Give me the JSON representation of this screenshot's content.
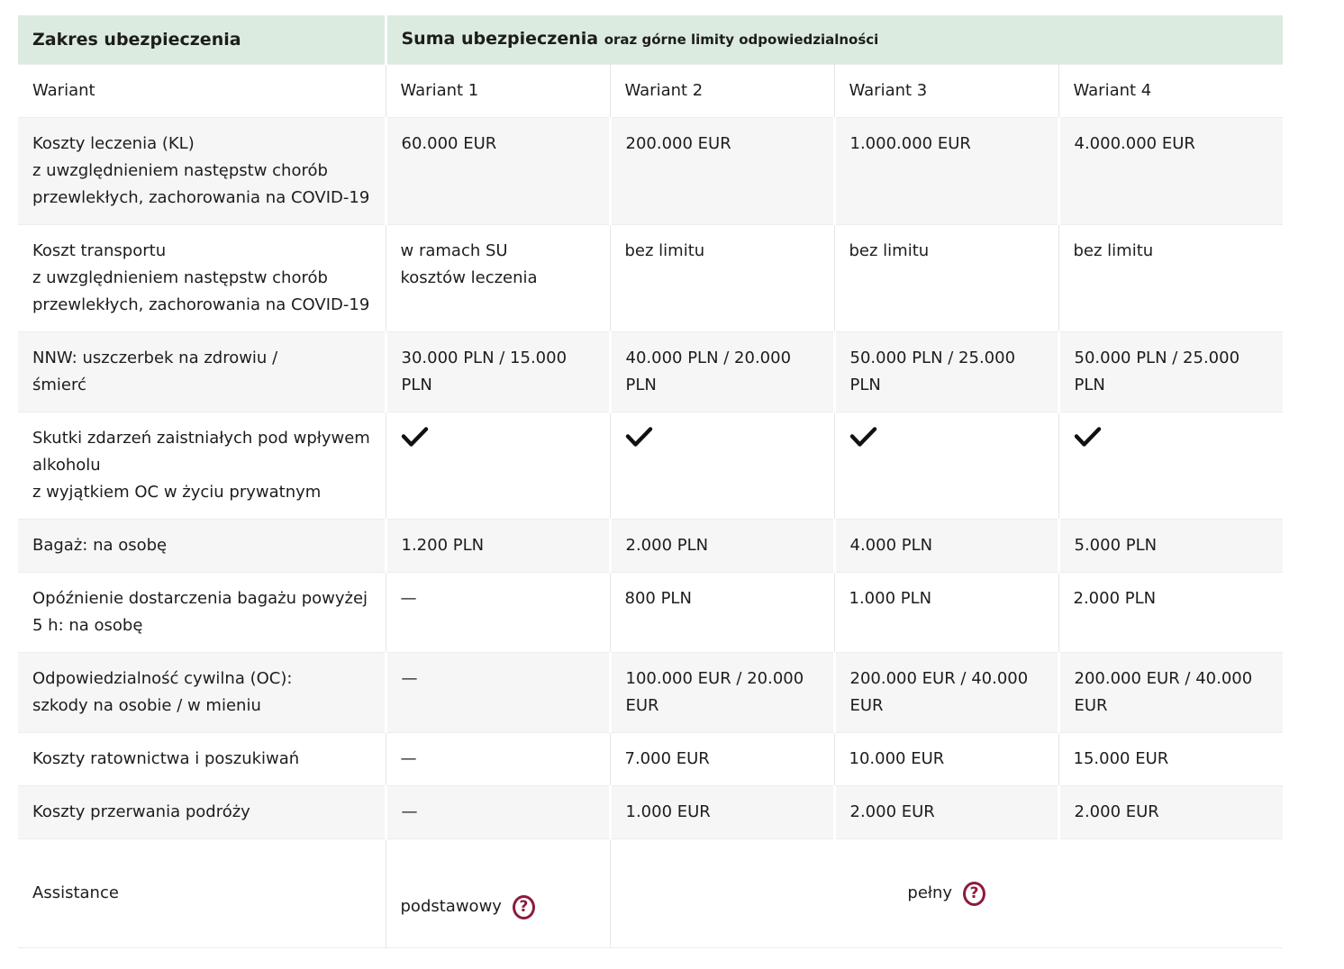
{
  "colors": {
    "header_bg": "#dcebdf",
    "row_alt_bg": "#f6f6f6",
    "text": "#1d1d1d",
    "help_icon": "#8e1a3b"
  },
  "header": {
    "scope_title": "Zakres ubezpieczenia",
    "sum_title": "Suma ubezpieczenia",
    "sum_subtitle": "oraz górne limity odpowiedzialności"
  },
  "variant_header": {
    "label": "Wariant",
    "variants": [
      "Wariant 1",
      "Wariant 2",
      "Wariant 3",
      "Wariant 4"
    ]
  },
  "rows": [
    {
      "label": "Koszty leczenia (KL)\nz uwzględnieniem następstw chorób przewlekłych, zachorowania na COVID-19",
      "values": [
        "60.000 EUR",
        "200.000 EUR",
        "1.000.000 EUR",
        "4.000.000 EUR"
      ]
    },
    {
      "label": "Koszt transportu\nz uwzględnieniem następstw chorób przewlekłych, zachorowania na COVID-19",
      "values": [
        "w ramach SU\nkosztów leczenia",
        "bez limitu",
        "bez limitu",
        "bez limitu"
      ]
    },
    {
      "label": "NNW: uszczerbek na zdrowiu /\nśmierć",
      "values": [
        "30.000 PLN / 15.000 PLN",
        "40.000 PLN / 20.000 PLN",
        "50.000 PLN / 25.000 PLN",
        "50.000 PLN / 25.000 PLN"
      ]
    },
    {
      "label": "Skutki zdarzeń zaistniałych pod wpływem alkoholu\nz wyjątkiem OC w życiu prywatnym",
      "type": "check",
      "values": [
        true,
        true,
        true,
        true
      ]
    },
    {
      "label": "Bagaż: na osobę",
      "values": [
        "1.200 PLN",
        "2.000 PLN",
        "4.000 PLN",
        "5.000 PLN"
      ]
    },
    {
      "label": "Opóźnienie dostarczenia bagażu powyżej 5 h: na osobę",
      "values": [
        "—",
        "800 PLN",
        "1.000 PLN",
        "2.000 PLN"
      ]
    },
    {
      "label": "Odpowiedzialność cywilna (OC):\nszkody na osobie / w mieniu",
      "values": [
        "—",
        "100.000 EUR / 20.000 EUR",
        "200.000 EUR / 40.000 EUR",
        "200.000 EUR / 40.000 EUR"
      ]
    },
    {
      "label": "Koszty ratownictwa i poszukiwań",
      "values": [
        "—",
        "7.000 EUR",
        "10.000 EUR",
        "15.000 EUR"
      ]
    },
    {
      "label": "Koszty przerwania podróży",
      "values": [
        "—",
        "1.000 EUR",
        "2.000 EUR",
        "2.000 EUR"
      ]
    }
  ],
  "assistance": {
    "label": "Assistance",
    "variant1": "podstawowy",
    "variants_2_4": "pełny",
    "help_glyph": "?"
  }
}
